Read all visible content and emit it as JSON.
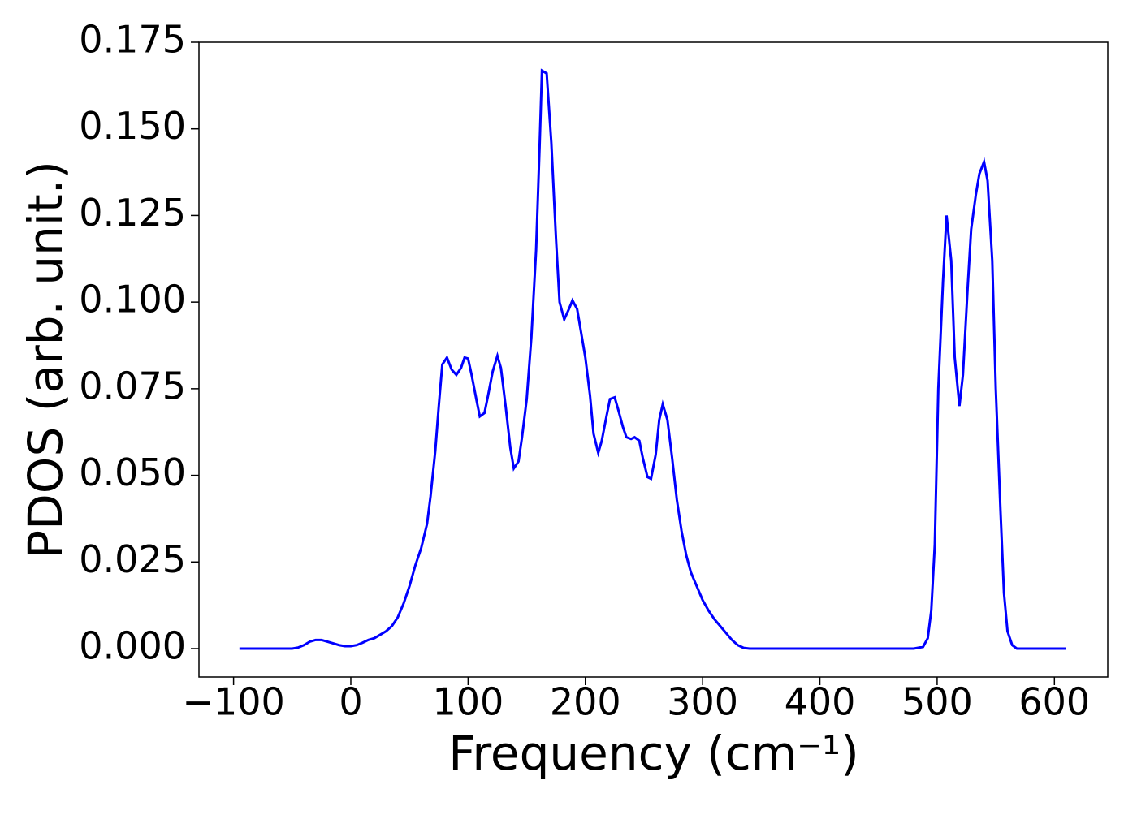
{
  "chart_data": {
    "type": "line",
    "ylabel": "PDOS (arb. unit.)",
    "xlabel": "Frequency (cm⁻¹)",
    "xlim": [
      -129.5,
      645.5
    ],
    "ylim": [
      -0.0082,
      0.175
    ],
    "xticks": [
      {
        "value": -100,
        "label": "−100"
      },
      0,
      100,
      200,
      300,
      400,
      500,
      600
    ],
    "yticks": [
      {
        "value": 0,
        "label": "0.000"
      },
      {
        "value": 0.025,
        "label": "0.025"
      },
      {
        "value": 0.05,
        "label": "0.050"
      },
      {
        "value": 0.075,
        "label": "0.075"
      },
      {
        "value": 0.1,
        "label": "0.100"
      },
      {
        "value": 0.125,
        "label": "0.125"
      },
      {
        "value": 0.15,
        "label": "0.150"
      },
      {
        "value": 0.175,
        "label": "0.175"
      }
    ],
    "grid": false,
    "series": [
      {
        "color": "#0000ff",
        "x": [
          -95,
          -50,
          -45,
          -40,
          -35,
          -30,
          -25,
          -20,
          -15,
          -10,
          -5,
          0,
          5,
          10,
          15,
          20,
          25,
          30,
          35,
          40,
          45,
          50,
          55,
          60,
          65,
          68,
          72,
          75,
          78,
          82,
          86,
          90,
          94,
          97,
          100,
          103,
          107,
          110,
          114,
          117,
          121,
          125,
          128,
          132,
          136,
          139,
          143,
          146,
          150,
          154,
          158,
          161,
          163,
          167,
          171,
          175,
          178,
          182,
          186,
          189,
          193,
          196,
          200,
          204,
          207,
          211,
          214,
          218,
          221,
          225,
          228,
          232,
          235,
          239,
          242,
          246,
          249,
          253,
          256,
          260,
          263,
          266,
          270,
          274,
          278,
          282,
          286,
          290,
          295,
          300,
          305,
          310,
          315,
          320,
          325,
          330,
          335,
          340,
          480,
          488,
          492,
          495,
          498,
          501,
          505,
          508,
          512,
          515,
          519,
          522,
          526,
          529,
          533,
          536,
          540,
          543,
          547,
          550,
          554,
          557,
          560,
          564,
          568,
          610
        ],
        "values": [
          0,
          0,
          0.0003,
          0.001,
          0.002,
          0.0025,
          0.0025,
          0.002,
          0.0015,
          0.001,
          0.0007,
          0.0007,
          0.001,
          0.0017,
          0.0025,
          0.003,
          0.004,
          0.005,
          0.0065,
          0.009,
          0.013,
          0.018,
          0.024,
          0.029,
          0.036,
          0.044,
          0.057,
          0.07,
          0.082,
          0.084,
          0.0805,
          0.079,
          0.081,
          0.084,
          0.0837,
          0.079,
          0.072,
          0.067,
          0.068,
          0.073,
          0.08,
          0.0845,
          0.081,
          0.07,
          0.058,
          0.052,
          0.054,
          0.061,
          0.072,
          0.09,
          0.115,
          0.145,
          0.1668,
          0.166,
          0.146,
          0.118,
          0.1,
          0.095,
          0.098,
          0.1005,
          0.098,
          0.092,
          0.084,
          0.073,
          0.062,
          0.0565,
          0.06,
          0.067,
          0.072,
          0.0725,
          0.069,
          0.064,
          0.061,
          0.0605,
          0.061,
          0.06,
          0.055,
          0.0495,
          0.049,
          0.056,
          0.066,
          0.0705,
          0.066,
          0.055,
          0.043,
          0.034,
          0.027,
          0.022,
          0.018,
          0.014,
          0.011,
          0.0085,
          0.0065,
          0.0045,
          0.0025,
          0.001,
          0.0002,
          0,
          0,
          0.0005,
          0.003,
          0.011,
          0.03,
          0.075,
          0.106,
          0.125,
          0.112,
          0.084,
          0.07,
          0.079,
          0.104,
          0.121,
          0.131,
          0.137,
          0.1405,
          0.135,
          0.112,
          0.075,
          0.04,
          0.016,
          0.005,
          0.001,
          0,
          0
        ]
      }
    ]
  }
}
